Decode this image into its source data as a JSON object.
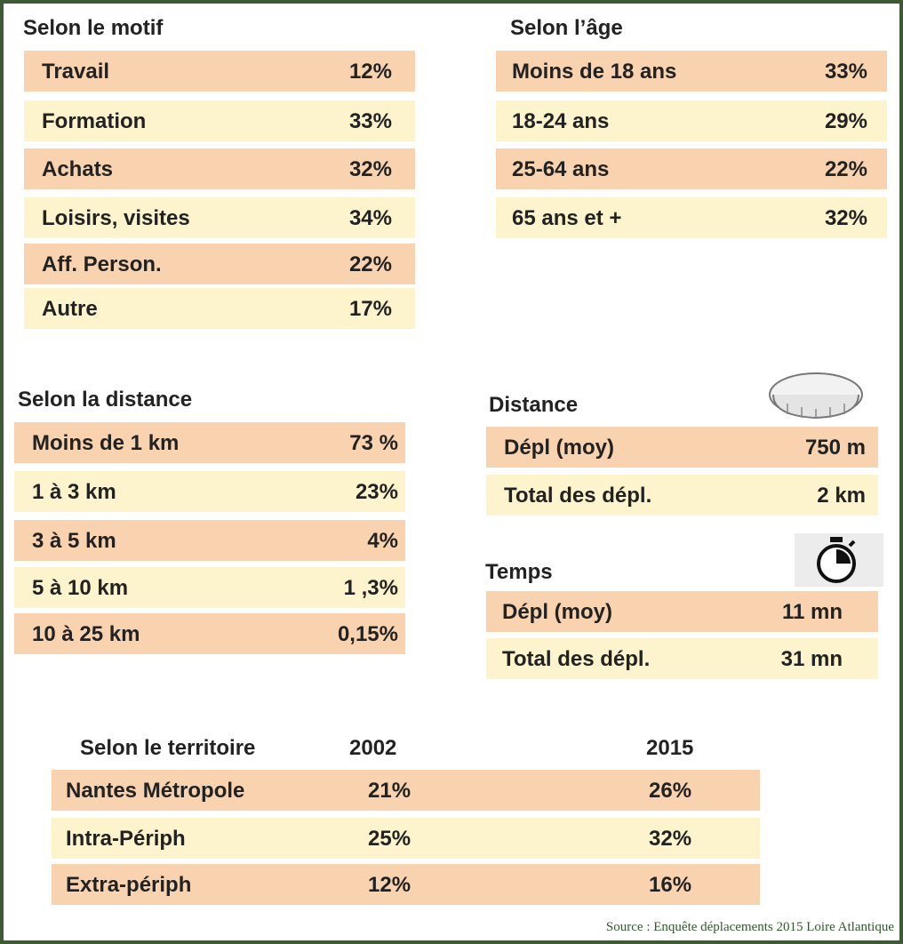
{
  "sections": [
    {
      "title": "Selon le motif",
      "rows": [
        [
          "Travail",
          "12%"
        ],
        [
          "Formation",
          "33%"
        ],
        [
          "Achats",
          "32%"
        ],
        [
          "Loisirs, visites",
          "34%"
        ],
        [
          "Aff. Person.",
          "22%"
        ],
        [
          "Autre",
          "17%"
        ]
      ]
    },
    {
      "title": "Selon l’âge",
      "rows": [
        [
          "Moins de 18 ans",
          "33%"
        ],
        [
          "18-24 ans",
          "29%"
        ],
        [
          "25-64 ans",
          "22%"
        ],
        [
          "65 ans et +",
          "32%"
        ]
      ]
    },
    {
      "title": "Selon la distance",
      "rows": [
        [
          "Moins de 1 km",
          "73 %"
        ],
        [
          "1 à 3 km",
          "23%"
        ],
        [
          "3 à 5 km",
          "4%"
        ],
        [
          "5 à 10 km",
          "1 ,3%"
        ],
        [
          "10 à 25 km",
          "0,15%"
        ]
      ]
    },
    {
      "title": "Distance",
      "rows": [
        [
          "Dépl (moy)",
          "750 m"
        ],
        [
          "Total des dépl.",
          "2 km"
        ]
      ]
    },
    {
      "title": "Temps",
      "rows": [
        [
          "Dépl (moy)",
          "11 mn"
        ],
        [
          "Total des dépl.",
          "31 mn"
        ]
      ]
    }
  ],
  "territoire": {
    "header": [
      "Selon le territoire",
      "2002",
      "2015"
    ],
    "rows": [
      [
        "Nantes Métropole",
        "21%",
        "26%"
      ],
      [
        "Intra-Périph",
        "25%",
        "32%"
      ],
      [
        "Extra-périph",
        "12%",
        "16%"
      ]
    ]
  },
  "source": "Source : Enquête déplacements 2015 Loire Atlantique"
}
